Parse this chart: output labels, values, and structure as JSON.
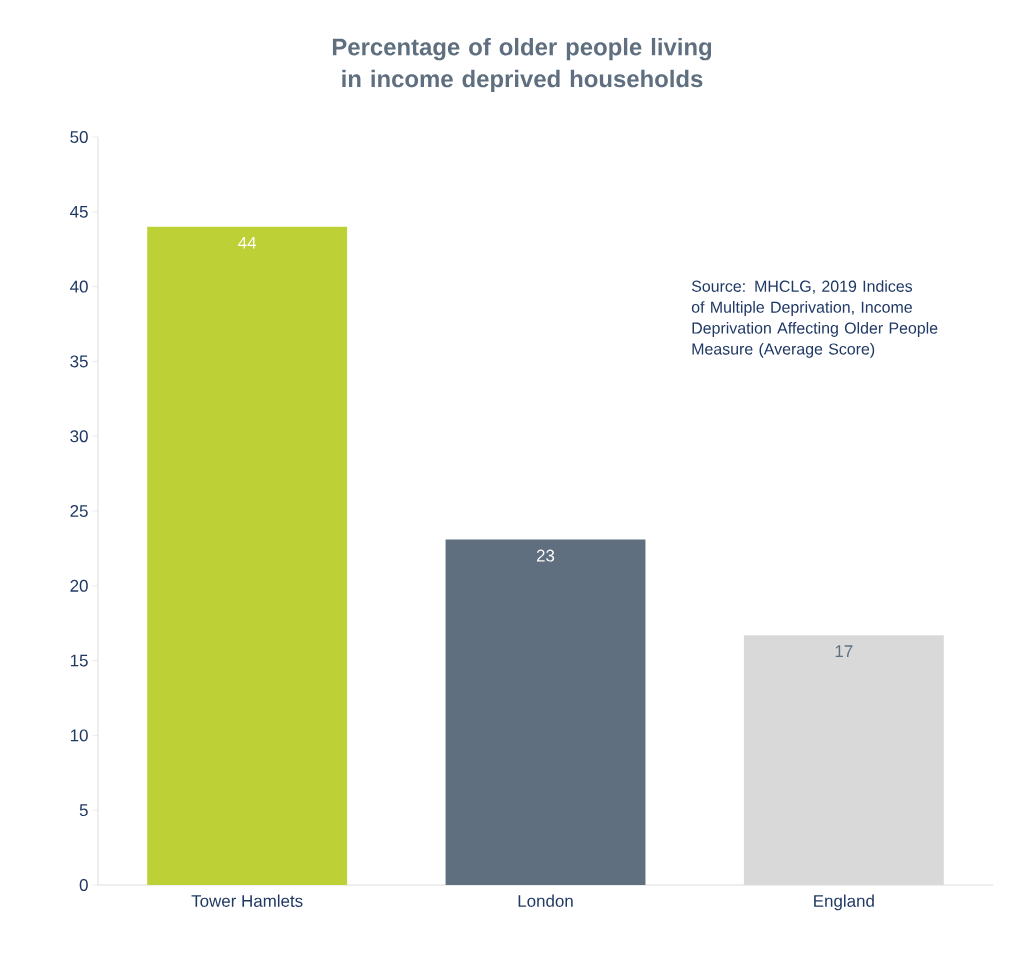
{
  "chart_data": {
    "type": "bar",
    "title": "Percentage of older people living in income deprived households",
    "categories": [
      "Tower Hamlets",
      "London",
      "England"
    ],
    "values": [
      44,
      23.1,
      16.7
    ],
    "value_labels": [
      "44",
      "23",
      "17"
    ],
    "colors": [
      "#bdd136",
      "#5f6f7f",
      "#d9d9d9"
    ],
    "ylim": [
      0,
      50
    ],
    "yticks": [
      0,
      5,
      10,
      15,
      20,
      25,
      30,
      35,
      40,
      45,
      50
    ],
    "annotations": [
      "Source: MHCLG, 2019 Indices of Multiple Deprivation, Income Deprivation Affecting Older People Measure (Average Score)"
    ]
  }
}
